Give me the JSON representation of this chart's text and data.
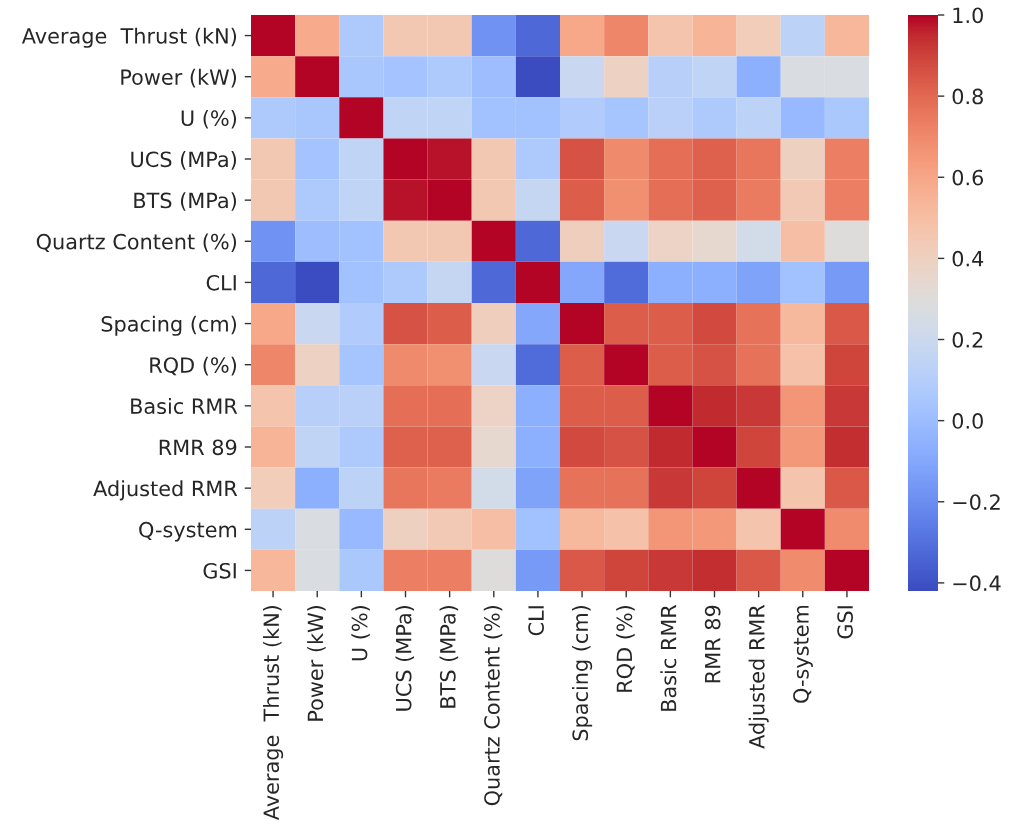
{
  "chart_data": {
    "type": "heatmap",
    "categories": [
      "Average  Thrust (kN)",
      "Power (kW)",
      "U (%)",
      "UCS (MPa)",
      "BTS (MPa)",
      "Quartz Content (%)",
      "CLI",
      "Spacing (cm)",
      "RQD (%)",
      "Basic RMR",
      "RMR 89",
      "Adjusted RMR",
      "Q-system",
      "GSI"
    ],
    "y_categories": [
      "Average  Thrust (kN)",
      "Power (kW)",
      "U (%)",
      "UCS (MPa)",
      "BTS (MPa)",
      "Quartz Content (%)",
      "CLI",
      "Spacing (cm)",
      "RQD (%)",
      "Basic RMR",
      "RMR 89",
      "Adjusted RMR",
      "Q-system",
      "GSI"
    ],
    "cells": [
      [
        1.0,
        0.58,
        0.07,
        0.45,
        0.45,
        -0.18,
        -0.33,
        0.59,
        0.71,
        0.47,
        0.54,
        0.42,
        0.13,
        0.53
      ],
      [
        0.58,
        1.0,
        0.05,
        0.03,
        0.07,
        0.0,
        -0.42,
        0.19,
        0.39,
        0.11,
        0.15,
        -0.07,
        0.27,
        0.27
      ],
      [
        0.07,
        0.05,
        1.0,
        0.15,
        0.15,
        0.02,
        0.02,
        0.08,
        0.04,
        0.12,
        0.07,
        0.13,
        -0.02,
        0.06
      ],
      [
        0.45,
        0.03,
        0.15,
        1.0,
        0.98,
        0.45,
        0.07,
        0.86,
        0.7,
        0.78,
        0.82,
        0.76,
        0.4,
        0.73
      ],
      [
        0.45,
        0.07,
        0.15,
        0.98,
        1.0,
        0.45,
        0.17,
        0.83,
        0.68,
        0.78,
        0.82,
        0.74,
        0.44,
        0.73
      ],
      [
        -0.18,
        0.0,
        0.02,
        0.45,
        0.45,
        1.0,
        -0.33,
        0.41,
        0.19,
        0.38,
        0.34,
        0.23,
        0.5,
        0.3
      ],
      [
        -0.33,
        -0.42,
        0.02,
        0.07,
        0.17,
        -0.33,
        1.0,
        -0.1,
        -0.32,
        -0.07,
        -0.06,
        -0.12,
        0.02,
        -0.15
      ],
      [
        0.59,
        0.19,
        0.08,
        0.86,
        0.83,
        0.41,
        -0.1,
        1.0,
        0.83,
        0.83,
        0.88,
        0.77,
        0.52,
        0.84
      ],
      [
        0.71,
        0.39,
        0.04,
        0.7,
        0.68,
        0.19,
        -0.32,
        0.83,
        1.0,
        0.83,
        0.86,
        0.77,
        0.48,
        0.89
      ],
      [
        0.47,
        0.11,
        0.12,
        0.78,
        0.78,
        0.38,
        -0.07,
        0.83,
        0.83,
        1.0,
        0.95,
        0.92,
        0.66,
        0.92
      ],
      [
        0.54,
        0.15,
        0.07,
        0.82,
        0.82,
        0.34,
        -0.06,
        0.88,
        0.86,
        0.95,
        1.0,
        0.89,
        0.65,
        0.94
      ],
      [
        0.42,
        -0.07,
        0.13,
        0.76,
        0.74,
        0.23,
        -0.12,
        0.77,
        0.77,
        0.92,
        0.89,
        1.0,
        0.47,
        0.84
      ],
      [
        0.13,
        0.27,
        -0.02,
        0.4,
        0.44,
        0.5,
        0.02,
        0.52,
        0.48,
        0.66,
        0.65,
        0.47,
        1.0,
        0.69
      ],
      [
        0.53,
        0.27,
        0.06,
        0.73,
        0.73,
        0.3,
        -0.15,
        0.84,
        0.89,
        0.92,
        0.94,
        0.84,
        0.69,
        1.0
      ]
    ],
    "clim": [
      -0.42,
      1.0
    ],
    "cticks": [
      {
        "value": -0.4,
        "label": "−0.4"
      },
      {
        "value": -0.2,
        "label": "−0.2"
      },
      {
        "value": 0.0,
        "label": "0.0"
      },
      {
        "value": 0.2,
        "label": "0.2"
      },
      {
        "value": 0.4,
        "label": "0.4"
      },
      {
        "value": 0.6,
        "label": "0.6"
      },
      {
        "value": 0.8,
        "label": "0.8"
      },
      {
        "value": 1.0,
        "label": "1.0"
      }
    ]
  }
}
